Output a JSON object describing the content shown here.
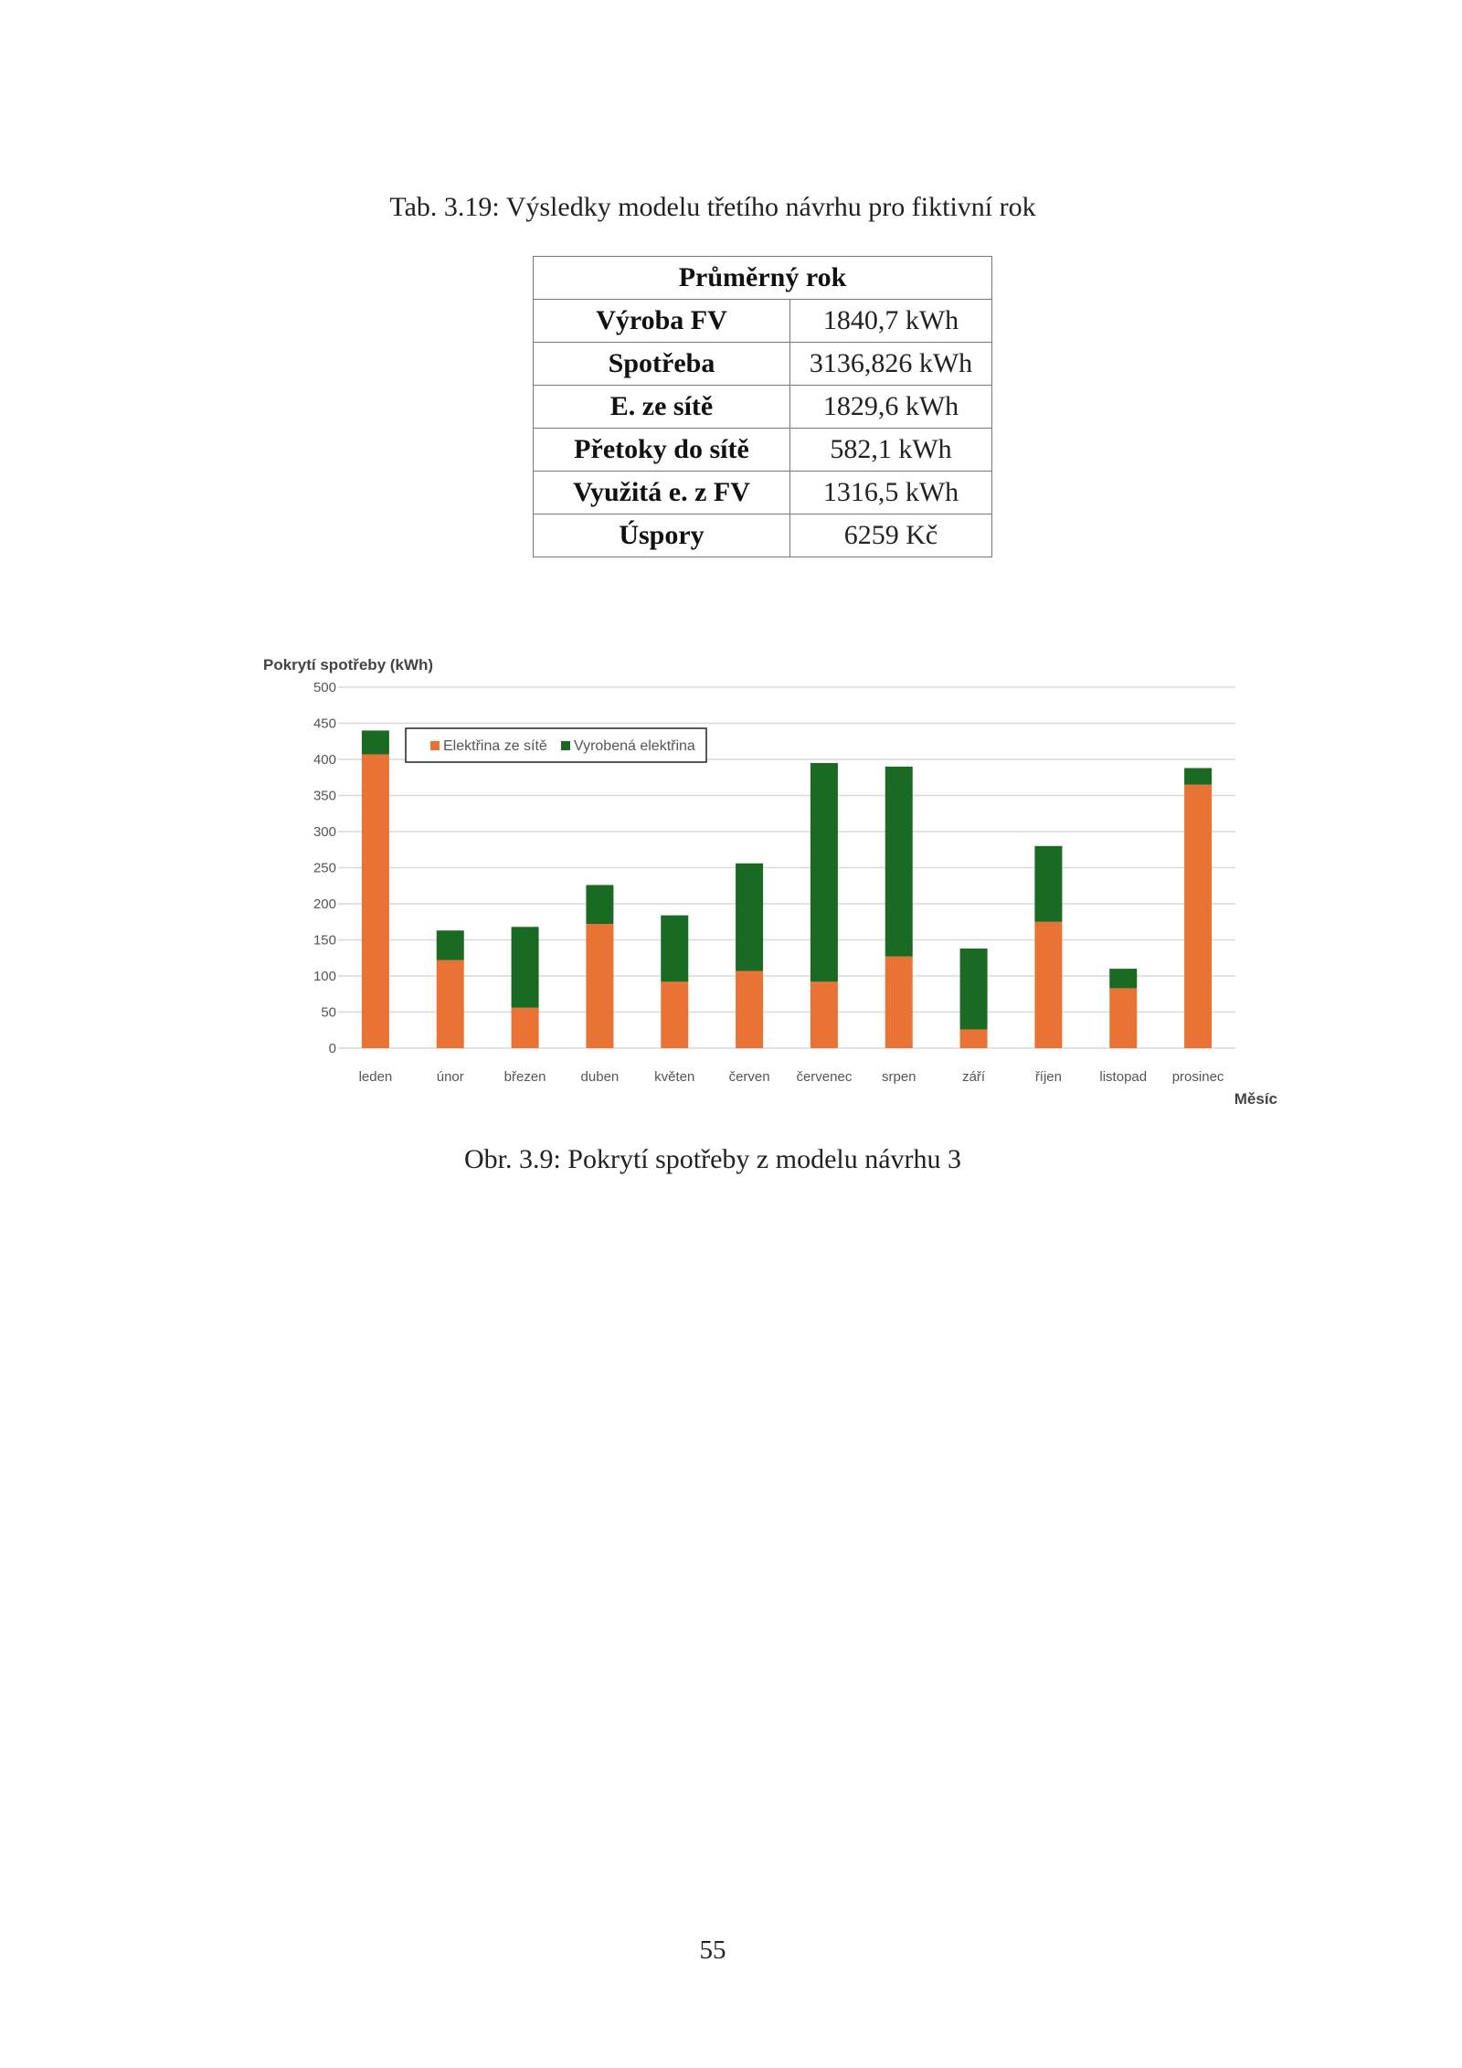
{
  "table_caption": "Tab. 3.19: Výsledky modelu třetího návrhu pro fiktivní rok",
  "table": {
    "header": "Průměrný rok",
    "rows": [
      {
        "label": "Výroba FV",
        "value": "1840,7 kWh"
      },
      {
        "label": "Spotřeba",
        "value": "3136,826 kWh"
      },
      {
        "label": "E. ze sítě",
        "value": "1829,6 kWh"
      },
      {
        "label": "Přetoky do sítě",
        "value": "582,1 kWh"
      },
      {
        "label": "Využitá e. z FV",
        "value": "1316,5 kWh"
      },
      {
        "label": "Úspory",
        "value": "6259 Kč"
      }
    ]
  },
  "chart_data": {
    "type": "bar",
    "stacked": true,
    "title": "",
    "ylabel": "Pokrytí spotřeby (kWh)",
    "xlabel": "Měsíc",
    "ylim": [
      0,
      500
    ],
    "yticks": [
      0,
      50,
      100,
      150,
      200,
      250,
      300,
      350,
      400,
      450,
      500
    ],
    "grid": true,
    "legend_position": "top-center",
    "categories": [
      "leden",
      "únor",
      "březen",
      "duben",
      "květen",
      "červen",
      "červenec",
      "srpen",
      "září",
      "říjen",
      "listopad",
      "prosinec"
    ],
    "series": [
      {
        "name": "Elektřina ze sítě",
        "color": "#E97334",
        "values": [
          407,
          122,
          56,
          172,
          92,
          107,
          92,
          127,
          26,
          175,
          83,
          365
        ]
      },
      {
        "name": "Vyrobená elektřina",
        "color": "#1B6A23",
        "values": [
          33,
          41,
          112,
          54,
          92,
          149,
          303,
          263,
          112,
          105,
          27,
          23
        ]
      }
    ]
  },
  "figure_caption": "Obr. 3.9: Pokrytí spotřeby z modelu návrhu 3",
  "page_number": "55"
}
